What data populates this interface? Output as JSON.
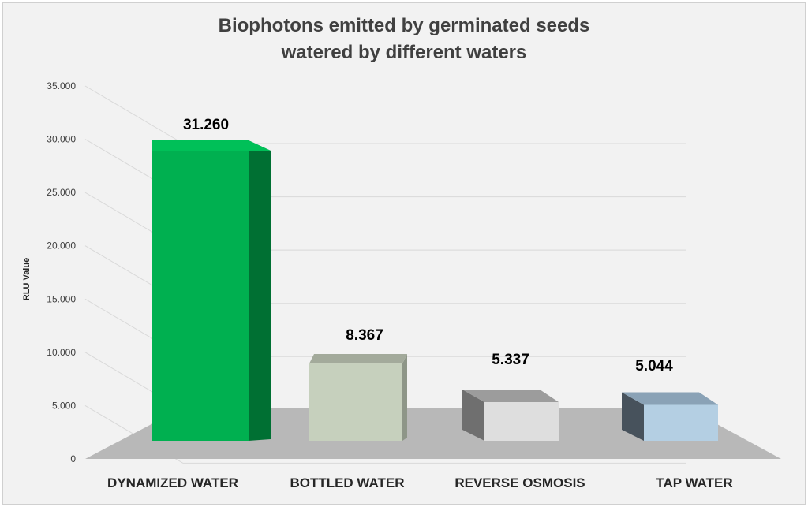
{
  "chart_data": {
    "type": "bar",
    "title_lines": [
      "Biophotons emitted by germinated seeds",
      "watered by different waters"
    ],
    "ylabel": "RLU Value",
    "xlabel": "",
    "ylim": [
      0,
      35000
    ],
    "yticks": [
      0,
      5000,
      10000,
      15000,
      20000,
      25000,
      30000,
      35000
    ],
    "ytick_labels": [
      "0",
      "5.000",
      "10.000",
      "15.000",
      "20.000",
      "25.000",
      "30.000",
      "35.000"
    ],
    "categories": [
      "DYNAMIZED WATER",
      "BOTTLED WATER",
      "REVERSE OSMOSIS",
      "TAP WATER"
    ],
    "values": [
      31260,
      8367,
      5337,
      5044
    ],
    "value_labels": [
      "31.260",
      "8.367",
      "5.337",
      "5.044"
    ],
    "legend": "none",
    "grid": true,
    "style": "3d",
    "colors": {
      "background": "#f2f2f2",
      "floor": "#b8b8b8",
      "gridline": "#d9d9d9",
      "bars": [
        {
          "front": "#00b050",
          "side": "#007033",
          "top": "#00c058"
        },
        {
          "front": "#c6d0bd",
          "side": "#8e9688",
          "top": "#a3aa9b"
        },
        {
          "front": "#dedede",
          "side": "#6f6f6f",
          "top": "#9c9c9c"
        },
        {
          "front": "#b4cfe3",
          "side": "#47525c",
          "top": "#8aa2b6"
        }
      ]
    }
  }
}
